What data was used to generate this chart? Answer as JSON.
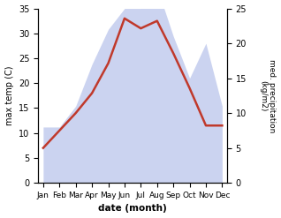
{
  "months": [
    "Jan",
    "Feb",
    "Mar",
    "Apr",
    "May",
    "Jun",
    "Jul",
    "Aug",
    "Sep",
    "Oct",
    "Nov",
    "Dec"
  ],
  "month_positions": [
    0,
    1,
    2,
    3,
    4,
    5,
    6,
    7,
    8,
    9,
    10,
    11
  ],
  "temperature": [
    7,
    10.5,
    14,
    18,
    24,
    33,
    31,
    32.5,
    26,
    19,
    11.5,
    11.5
  ],
  "precipitation_mm": [
    8,
    8,
    11,
    17,
    22,
    25,
    25,
    28,
    21,
    15,
    20,
    11
  ],
  "temp_color": "#c0392b",
  "precip_color": "#b0bce8",
  "temp_ylim": [
    0,
    35
  ],
  "precip_ylim": [
    0,
    25
  ],
  "temp_yticks": [
    0,
    5,
    10,
    15,
    20,
    25,
    30,
    35
  ],
  "precip_yticks": [
    0,
    5,
    10,
    15,
    20,
    25
  ],
  "ylabel_left": "max temp (C)",
  "ylabel_right": "med. precipitation\n(kg/m2)",
  "xlabel": "date (month)",
  "linewidth": 1.8,
  "background_color": "#ffffff"
}
